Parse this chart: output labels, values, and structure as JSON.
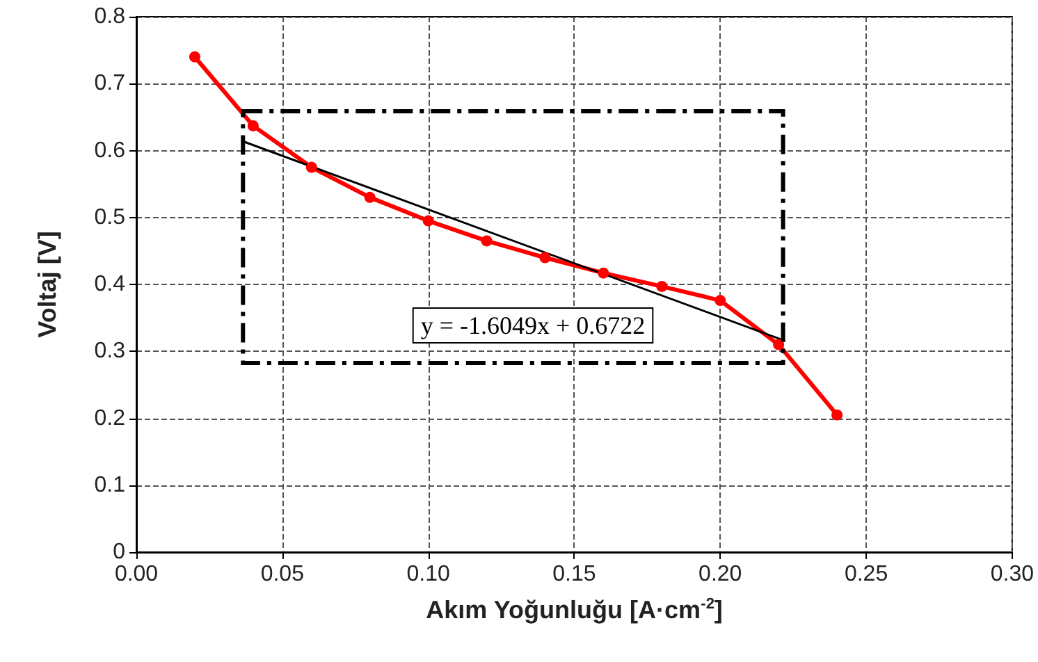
{
  "chart_data": {
    "type": "line",
    "xlabel": "Akım Yoğunluğu [A·cm$^{-2}$]",
    "ylabel": "Voltaj [V]",
    "x": [
      0.02,
      0.04,
      0.06,
      0.08,
      0.1,
      0.12,
      0.14,
      0.16,
      0.18,
      0.2,
      0.22,
      0.24
    ],
    "series": [
      {
        "color": "#ff0000",
        "marker": "circle",
        "line_style": "solid",
        "values": [
          0.74,
          0.637,
          0.575,
          0.53,
          0.495,
          0.465,
          0.44,
          0.417,
          0.397,
          0.376,
          0.31,
          0.205
        ]
      },
      {
        "color": "#000000",
        "marker": "none",
        "line_style": "solid",
        "x": [
          0.037,
          0.222
        ],
        "values": [
          0.613,
          0.316
        ]
      }
    ],
    "annotations": [
      "y = -1.6049x + 0.6722"
    ],
    "xlim": [
      0,
      0.3
    ],
    "xticks": [
      {
        "value": 0,
        "label": "0.00"
      },
      {
        "value": 0.05,
        "label": "0.05"
      },
      {
        "value": 0.1,
        "label": "0.10"
      },
      {
        "value": 0.15,
        "label": "0.15"
      },
      {
        "value": 0.2,
        "label": "0.20"
      },
      {
        "value": 0.25,
        "label": "0.25"
      },
      {
        "value": 0.3,
        "label": "0.30"
      }
    ],
    "ylim": [
      0,
      0.8
    ],
    "yticks": [
      0,
      0.1,
      0.2,
      0.3,
      0.4,
      0.5,
      0.6,
      0.7,
      0.8
    ],
    "grid": true
  }
}
